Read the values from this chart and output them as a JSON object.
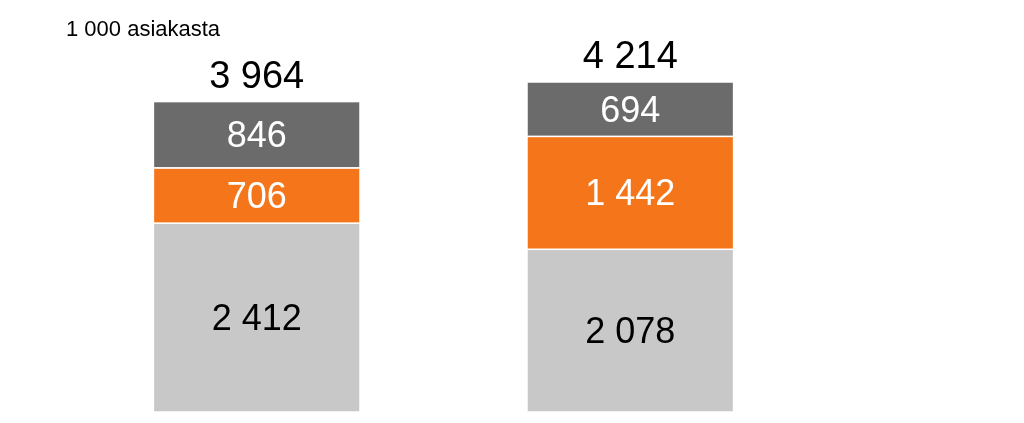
{
  "chart_data": {
    "type": "bar",
    "stacked": true,
    "categories": [
      null,
      null
    ],
    "annotations": [
      "1 000 asiakasta"
    ],
    "series": [
      {
        "color": "#c8c8c8",
        "values": [
          2412,
          2078
        ],
        "value_labels": [
          "2 412",
          "2 078"
        ]
      },
      {
        "color": "#f5761a",
        "values": [
          706,
          1442
        ],
        "value_labels": [
          "706",
          "1 442"
        ]
      },
      {
        "color": "#6b6b6b",
        "values": [
          846,
          694
        ],
        "value_labels": [
          "846",
          "694"
        ]
      }
    ],
    "totals": [
      "3 964",
      "4 214"
    ]
  }
}
